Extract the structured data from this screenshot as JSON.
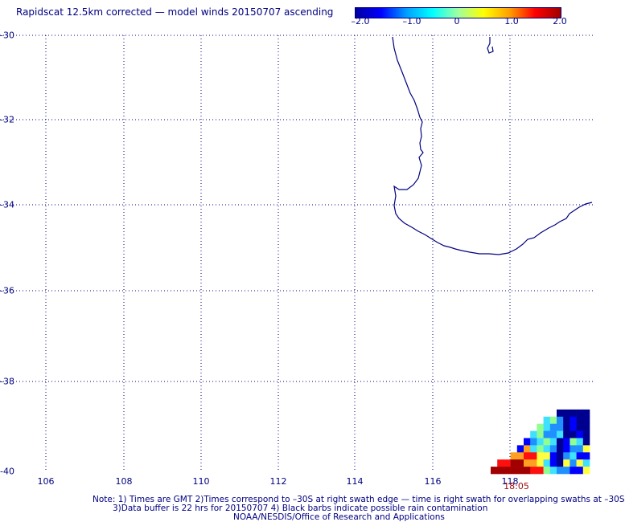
{
  "title": "Rapidscat 12.5km corrected — model winds 20150707 ascending",
  "colorbar": {
    "ticks": [
      "–2.0",
      "–1.0",
      "0",
      "1.0",
      "2.0"
    ],
    "range": [
      -2.0,
      2.0
    ],
    "colors": [
      "#0000a0",
      "#0000ff",
      "#00a0ff",
      "#00ffff",
      "#a0ffa0",
      "#ffff00",
      "#ffa000",
      "#ff0000",
      "#a00000"
    ]
  },
  "map": {
    "lat_labels": [
      "-30",
      "-32",
      "-34",
      "-36",
      "-38",
      "-40"
    ],
    "lon_labels": [
      "106",
      "108",
      "110",
      "112",
      "114",
      "116",
      "118"
    ],
    "lat_range": [
      -40,
      -30
    ],
    "lon_range": [
      105.2,
      119.7
    ],
    "grid": "dotted",
    "coastline_color": "#000080",
    "timestamp": "18:05"
  },
  "notes": {
    "line1": "Note: 1) Times are GMT 2)Times correspond to –30S at right swath edge — time is right swath for overlapping swaths at –30S",
    "line2": "3)Data buffer is 22 hrs for 20150707 4) Black barbs indicate possible rain contamination",
    "line3": "NOAA/NESDIS/Office of Research and Applications"
  }
}
